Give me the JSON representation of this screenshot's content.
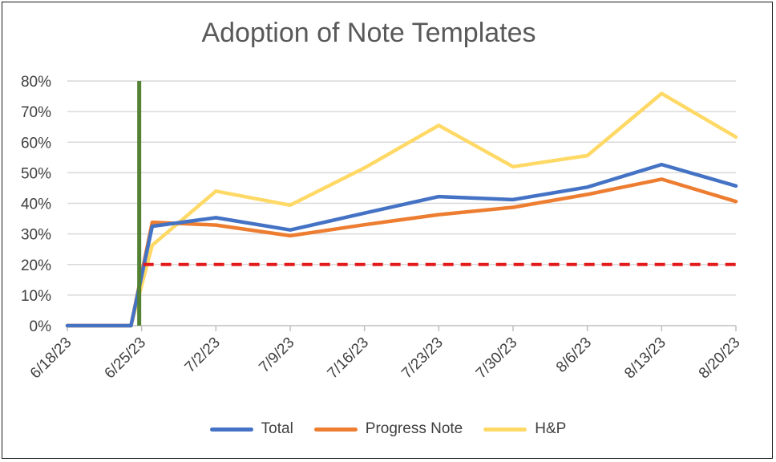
{
  "chart_data": {
    "type": "line",
    "title": "Adoption of Note Templates",
    "xlabel": "",
    "ylabel": "",
    "categories": [
      "6/18/23",
      "6/25/23",
      "7/2/23",
      "7/9/23",
      "7/16/23",
      "7/23/23",
      "7/30/23",
      "8/6/23",
      "8/13/23",
      "8/20/23"
    ],
    "y_ticks": [
      "0%",
      "10%",
      "20%",
      "30%",
      "40%",
      "50%",
      "60%",
      "70%",
      "80%"
    ],
    "ylim": [
      0,
      80
    ],
    "grid": true,
    "legend": "bottom",
    "series": [
      {
        "name": "Total",
        "color": "#4472C4",
        "points": [
          {
            "date": "6/18/23",
            "value": 0
          },
          {
            "date": "6/24/23",
            "value": 0
          },
          {
            "date": "6/26/23",
            "value": 32.5
          },
          {
            "date": "7/2/23",
            "value": 35.3
          },
          {
            "date": "7/9/23",
            "value": 31.3
          },
          {
            "date": "7/16/23",
            "value": 36.8
          },
          {
            "date": "7/23/23",
            "value": 42.2
          },
          {
            "date": "7/30/23",
            "value": 41.2
          },
          {
            "date": "8/6/23",
            "value": 45.3
          },
          {
            "date": "8/13/23",
            "value": 52.7
          },
          {
            "date": "8/20/23",
            "value": 45.7
          }
        ]
      },
      {
        "name": "Progress Note",
        "color": "#ED7D31",
        "points": [
          {
            "date": "6/18/23",
            "value": 0
          },
          {
            "date": "6/24/23",
            "value": 0
          },
          {
            "date": "6/26/23",
            "value": 33.8
          },
          {
            "date": "7/2/23",
            "value": 32.9
          },
          {
            "date": "7/9/23",
            "value": 29.4
          },
          {
            "date": "7/16/23",
            "value": 33.0
          },
          {
            "date": "7/23/23",
            "value": 36.3
          },
          {
            "date": "7/30/23",
            "value": 38.7
          },
          {
            "date": "8/6/23",
            "value": 42.9
          },
          {
            "date": "8/13/23",
            "value": 47.9
          },
          {
            "date": "8/20/23",
            "value": 40.6
          }
        ]
      },
      {
        "name": "H&P",
        "color": "#FFD966",
        "points": [
          {
            "date": "6/18/23",
            "value": 0
          },
          {
            "date": "6/24/23",
            "value": 0
          },
          {
            "date": "6/26/23",
            "value": 26.3
          },
          {
            "date": "7/2/23",
            "value": 44.0
          },
          {
            "date": "7/9/23",
            "value": 39.4
          },
          {
            "date": "7/16/23",
            "value": 51.6
          },
          {
            "date": "7/23/23",
            "value": 65.5
          },
          {
            "date": "7/30/23",
            "value": 52.0
          },
          {
            "date": "8/6/23",
            "value": 55.6
          },
          {
            "date": "8/13/23",
            "value": 75.9
          },
          {
            "date": "8/20/23",
            "value": 61.7
          }
        ]
      }
    ],
    "reference_lines": [
      {
        "kind": "horizontal",
        "value": 20,
        "from_date": "6/25/23",
        "to_date": "8/20/23",
        "color": "#E31A1C",
        "style": "dashed"
      },
      {
        "kind": "vertical",
        "date": "6/25/23",
        "color": "#548235",
        "style": "solid"
      }
    ]
  }
}
